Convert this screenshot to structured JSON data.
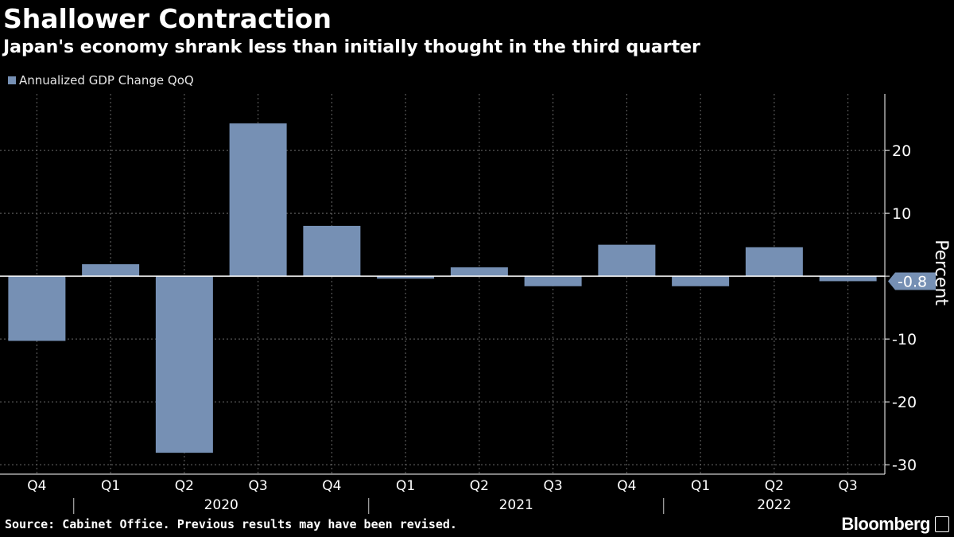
{
  "title": "Shallower Contraction",
  "subtitle": "Japan's economy shrank less than initially thought in the third quarter",
  "source": "Source: Cabinet Office. Previous results may have been revised.",
  "brand": "Bloomberg",
  "colors": {
    "background": "#000000",
    "bar": "#7690b4",
    "grid": "#6a6a6a",
    "text": "#ffffff"
  },
  "chart_data": {
    "type": "bar",
    "title": "Shallower Contraction",
    "subtitle": "Japan's economy shrank less than initially thought in the third quarter",
    "categories": [
      "Q4",
      "Q1",
      "Q2",
      "Q3",
      "Q4",
      "Q1",
      "Q2",
      "Q3",
      "Q4",
      "Q1",
      "Q2",
      "Q3"
    ],
    "year_labels": [
      {
        "label": "2020",
        "start_index": 1,
        "end_index": 4
      },
      {
        "label": "2021",
        "start_index": 5,
        "end_index": 8
      },
      {
        "label": "2022",
        "start_index": 9,
        "end_index": 11
      }
    ],
    "series": [
      {
        "name": "Annualized GDP Change QoQ",
        "values": [
          -10.3,
          1.9,
          -28.1,
          24.3,
          8.0,
          -0.4,
          1.4,
          -1.6,
          5.0,
          -1.6,
          4.6,
          -0.8
        ]
      }
    ],
    "yticks": [
      20,
      10,
      0,
      -10,
      -20,
      -30
    ],
    "ytick_labels": [
      "20",
      "10",
      "",
      "-10",
      "-20",
      "-30"
    ],
    "ylim": [
      -31.5,
      29
    ],
    "ylabel": "Percent",
    "xlabel": "",
    "last_value_label": "-0.8",
    "grid": true,
    "legend": "top-left"
  }
}
